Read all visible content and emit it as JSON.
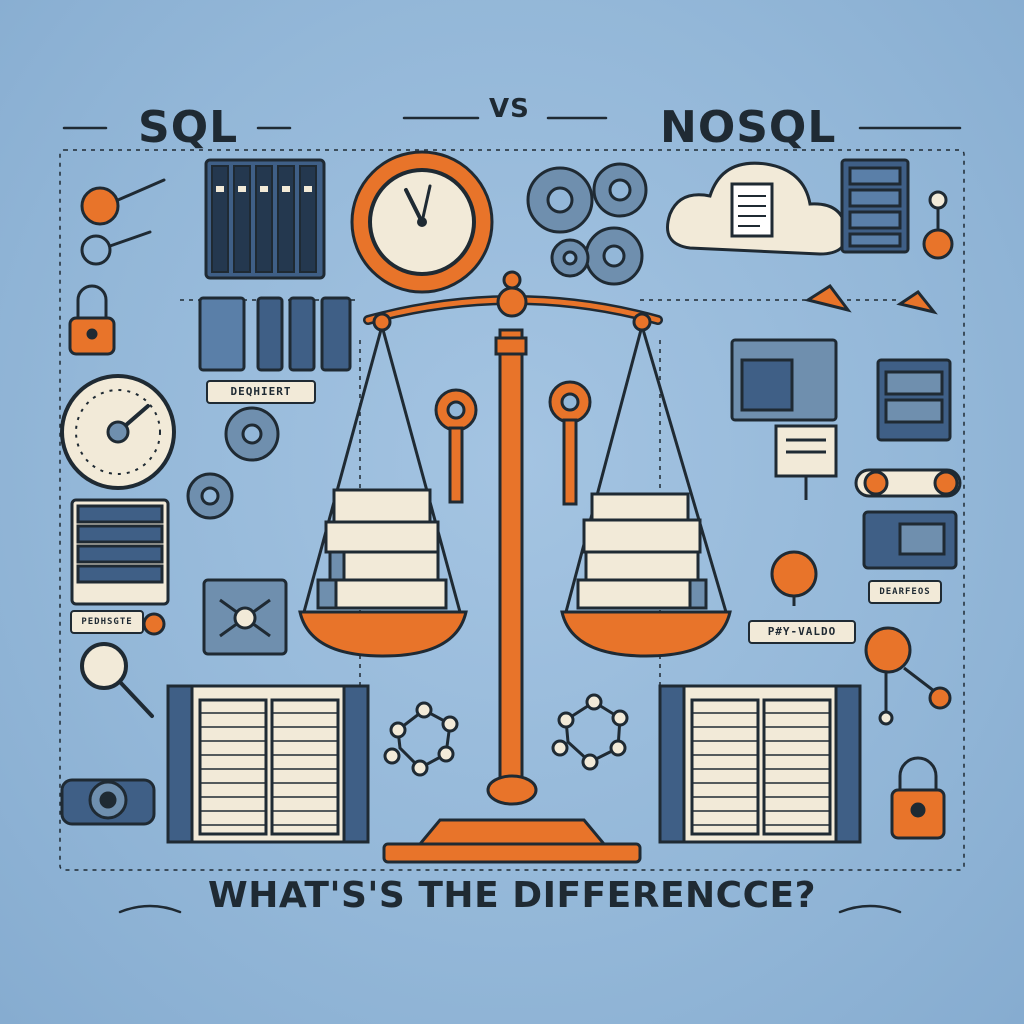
{
  "titles": {
    "left": "SQL",
    "middle": "VS",
    "right": "NOSQL",
    "question": "WHAT'S'S THE DIFFERENCCE?"
  },
  "tags": {
    "document": "DEQHIERT",
    "products": "PEDHSGTE",
    "records": "DEARFEOS",
    "key_value": "P#Y-VALDO"
  },
  "colors": {
    "background": "#93b7d8",
    "ink": "#1f2a33",
    "accent_orange": "#e8742a",
    "server_blue": "#3f5f86",
    "paper": "#f2ead8"
  },
  "icons": [
    "balance-scale-icon",
    "clock-gear-icon",
    "gears-icon",
    "cloud-document-icon",
    "server-rack-icon",
    "key-icon",
    "padlock-icon",
    "gauge-icon",
    "database-table-icon",
    "molecule-graph-icon",
    "book-stack-icon"
  ]
}
